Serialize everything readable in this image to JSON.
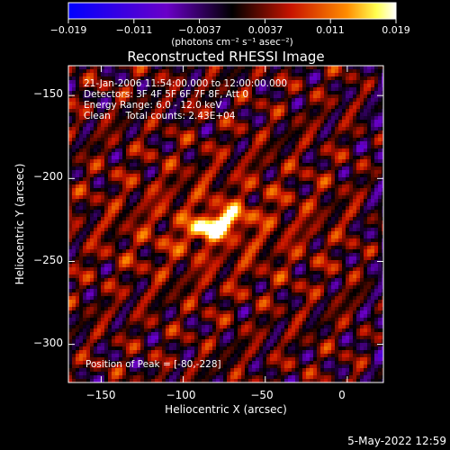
{
  "colorbar": {
    "ticks": [
      "−0.019",
      "−0.011",
      "−0.0037",
      "0.0037",
      "0.011",
      "0.019"
    ],
    "unit_label": "(photons cm⁻² s⁻¹ asec⁻²)"
  },
  "image_title": "Reconstructed RHESSI Image",
  "info_lines": [
    "21-Jan-2006 11:54:00.000 to 12:00:00.000",
    "Detectors: 3F 4F 5F 6F 7F 8F, Att 0",
    "Energy Range: 6.0 - 12.0 keV",
    "Clean     Total counts: 2.43E+04"
  ],
  "peak_label": "Position of Peak = [-80,-228]",
  "footer_timestamp": "5-May-2022 12:59",
  "chart_data": {
    "type": "heatmap",
    "title": "Reconstructed RHESSI Image",
    "xlabel": "Heliocentric X (arcsec)",
    "ylabel": "Heliocentric Y (arcsec)",
    "xlim": [
      -170,
      22
    ],
    "ylim": [
      -323,
      -132
    ],
    "x_ticks": [
      -150,
      -100,
      -50,
      0
    ],
    "y_ticks": [
      -150,
      -200,
      -250,
      -300
    ],
    "x_tick_labels": [
      "−150",
      "−100",
      "−50",
      "0"
    ],
    "y_tick_labels": [
      "−150",
      "−200",
      "−250",
      "−300"
    ],
    "color_range": [
      -0.019,
      0.019
    ],
    "colormap": [
      "#0000ff",
      "#6a00c8",
      "#000000",
      "#c81400",
      "#ff8c00",
      "#ffff50",
      "#ffffff"
    ],
    "peak": {
      "x": -80,
      "y": -228
    },
    "source": {
      "x": -80,
      "y": -228,
      "amplitude": 0.019
    }
  }
}
